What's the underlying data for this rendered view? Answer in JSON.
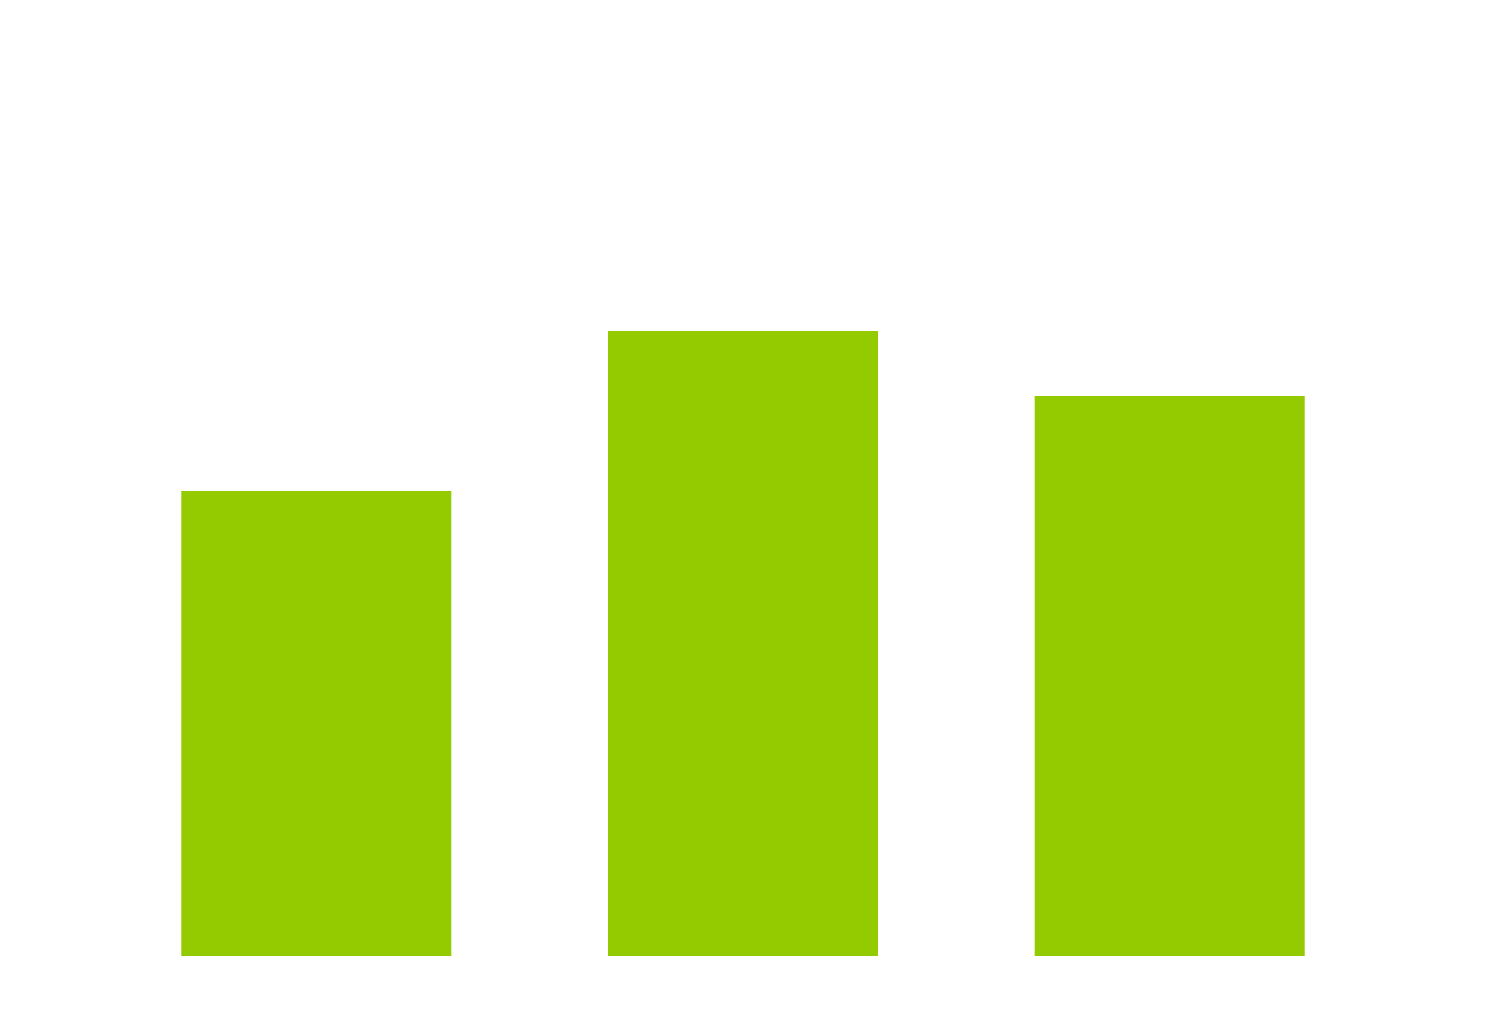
{
  "chart_data": {
    "type": "bar",
    "categories": [
      "",
      "",
      ""
    ],
    "values": [
      4.65,
      6.25,
      5.6
    ],
    "ylim": [
      0,
      9.56
    ],
    "grid": false,
    "legend": "none",
    "bar_color": "#93CA00",
    "background_color": "#FFFFFF"
  }
}
